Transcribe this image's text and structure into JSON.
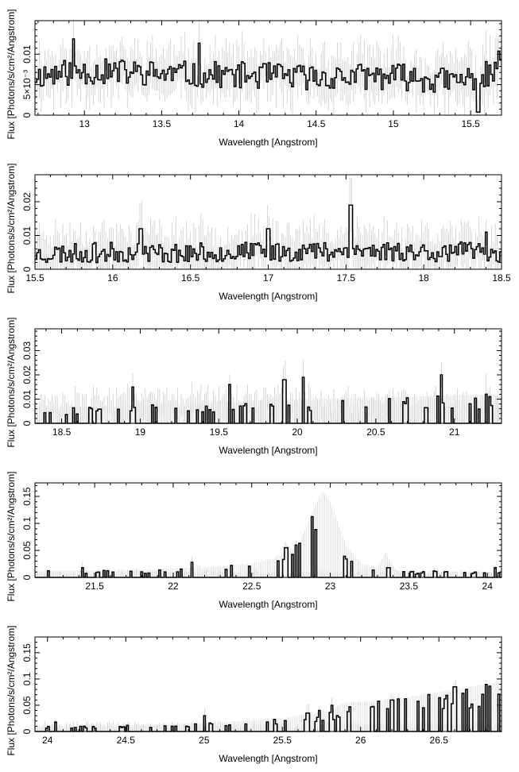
{
  "chart_data": [
    {
      "type": "line",
      "xlabel": "Wavelength [Angstrom]",
      "ylabel": "Flux [Photons/s/cm²/Angstrom]",
      "xlim": [
        12.68,
        15.7
      ],
      "ylim": [
        0,
        0.0155
      ],
      "xticks": [
        13,
        13.5,
        14,
        14.5,
        15,
        15.5
      ],
      "xtick_labels": [
        "13",
        "13.5",
        "14",
        "14.5",
        "15",
        "15.5"
      ],
      "yticks": [
        0,
        0.005,
        0.01
      ],
      "ytick_labels": [
        "0",
        "5×10⁻³",
        "0.01"
      ],
      "profile": [
        [
          12.68,
          0.0065
        ],
        [
          13.0,
          0.0072
        ],
        [
          13.5,
          0.0068
        ],
        [
          14.0,
          0.0066
        ],
        [
          14.5,
          0.0062
        ],
        [
          15.0,
          0.0064
        ],
        [
          15.4,
          0.0055
        ],
        [
          15.7,
          0.0072
        ]
      ],
      "features": [
        [
          12.93,
          0.0125
        ],
        [
          13.74,
          0.0118
        ],
        [
          15.55,
          0.0005
        ],
        [
          15.68,
          0.0105
        ]
      ],
      "noise": 0.0022,
      "errorbar": 0.0035,
      "floor": 0,
      "envelope": [],
      "seed": 11
    },
    {
      "type": "line",
      "xlabel": "Wavelength [Angstrom]",
      "ylabel": "Flux [Photons/s/cm²/Angstrom]",
      "xlim": [
        15.5,
        18.5
      ],
      "ylim": [
        0,
        0.028
      ],
      "xticks": [
        15.5,
        16,
        16.5,
        17,
        17.5,
        18,
        18.5
      ],
      "xtick_labels": [
        "15.5",
        "16",
        "16.5",
        "17",
        "17.5",
        "18",
        "18.5"
      ],
      "yticks": [
        0,
        0.01,
        0.02
      ],
      "ytick_labels": [
        "0",
        "0.01",
        "0.02"
      ],
      "profile": [
        [
          15.5,
          0.0045
        ],
        [
          16.0,
          0.005
        ],
        [
          16.5,
          0.0048
        ],
        [
          17.0,
          0.0052
        ],
        [
          17.5,
          0.0055
        ],
        [
          18.0,
          0.0052
        ],
        [
          18.5,
          0.005
        ]
      ],
      "features": [
        [
          16.18,
          0.012
        ],
        [
          17.0,
          0.012
        ],
        [
          17.53,
          0.019
        ],
        [
          18.4,
          0.011
        ]
      ],
      "noise": 0.003,
      "errorbar": 0.006,
      "floor": 0,
      "envelope": [],
      "seed": 23
    },
    {
      "type": "line",
      "xlabel": "Wavelength [Angstrom]",
      "ylabel": "Flux [Photons/s/cm²/Angstrom]",
      "xlim": [
        18.33,
        21.3
      ],
      "ylim": [
        0,
        0.039
      ],
      "xticks": [
        18.5,
        19,
        19.5,
        20,
        20.5,
        21
      ],
      "xtick_labels": [
        "18.5",
        "19",
        "19.5",
        "20",
        "20.5",
        "21"
      ],
      "yticks": [
        0,
        0.01,
        0.02,
        0.03
      ],
      "ytick_labels": [
        "0",
        "0.01",
        "0.02",
        "0.03"
      ],
      "profile": [
        [
          18.33,
          0.004
        ],
        [
          19.0,
          0.006
        ],
        [
          19.5,
          0.005
        ],
        [
          20.0,
          0.005
        ],
        [
          20.5,
          0.003
        ],
        [
          21.0,
          0.004
        ],
        [
          21.3,
          0.004
        ]
      ],
      "features": [
        [
          18.95,
          0.015
        ],
        [
          19.57,
          0.016
        ],
        [
          19.92,
          0.018
        ],
        [
          20.04,
          0.019
        ],
        [
          20.92,
          0.02
        ],
        [
          21.2,
          0.012
        ]
      ],
      "noise": 0.004,
      "errorbar": 0.006,
      "floor": 0,
      "envelope": [
        [
          18.33,
          0.006
        ],
        [
          19.2,
          0.008
        ],
        [
          20.0,
          0.01
        ],
        [
          20.7,
          0.011
        ],
        [
          21.3,
          0.012
        ]
      ],
      "seed": 37
    },
    {
      "type": "line",
      "xlabel": "Wavelength [Angstrom]",
      "ylabel": "Flux [Photons/s/cm²/Angstrom]",
      "xlim": [
        21.12,
        24.09
      ],
      "ylim": [
        0,
        0.175
      ],
      "xticks": [
        21.5,
        22,
        22.5,
        23,
        23.5,
        24
      ],
      "xtick_labels": [
        "21.5",
        "22",
        "22.5",
        "23",
        "23.5",
        "24"
      ],
      "yticks": [
        0,
        0.05,
        0.1,
        0.15
      ],
      "ytick_labels": [
        "0",
        "0.05",
        "0.1",
        "0.15"
      ],
      "profile": [
        [
          21.12,
          0.0
        ],
        [
          24.09,
          0.0
        ]
      ],
      "features": [
        [
          21.42,
          0.018
        ],
        [
          22.12,
          0.028
        ],
        [
          22.72,
          0.055
        ],
        [
          22.78,
          0.06
        ],
        [
          23.37,
          0.018
        ],
        [
          23.66,
          0.012
        ],
        [
          24.05,
          0.018
        ]
      ],
      "noise": 0.004,
      "errorbar": 0.008,
      "floor": 0,
      "envelope": [
        [
          21.12,
          0.012
        ],
        [
          21.8,
          0.014
        ],
        [
          22.3,
          0.02
        ],
        [
          22.6,
          0.03
        ],
        [
          22.8,
          0.06
        ],
        [
          22.9,
          0.13
        ],
        [
          22.95,
          0.16
        ],
        [
          23.0,
          0.14
        ],
        [
          23.1,
          0.06
        ],
        [
          23.2,
          0.025
        ],
        [
          23.3,
          0.02
        ],
        [
          23.35,
          0.045
        ],
        [
          23.42,
          0.012
        ],
        [
          24.09,
          0.01
        ]
      ],
      "seed": 51
    },
    {
      "type": "line",
      "xlabel": "Wavelength [Angstrom]",
      "ylabel": "Flux [Photons/s/cm²/Angstrom]",
      "xlim": [
        23.92,
        26.9
      ],
      "ylim": [
        0,
        0.18
      ],
      "xticks": [
        24,
        24.5,
        25,
        25.5,
        26,
        26.5
      ],
      "xtick_labels": [
        "24",
        "24.5",
        "25",
        "25.5",
        "26",
        "26.5"
      ],
      "yticks": [
        0,
        0.05,
        0.1,
        0.15
      ],
      "ytick_labels": [
        "0",
        "0.05",
        "0.1",
        "0.15"
      ],
      "profile": [
        [
          23.92,
          0.0
        ],
        [
          26.9,
          0.0
        ]
      ],
      "features": [
        [
          24.05,
          0.018
        ],
        [
          25.0,
          0.03
        ],
        [
          25.66,
          0.035
        ],
        [
          25.74,
          0.04
        ],
        [
          25.82,
          0.05
        ],
        [
          26.2,
          0.06
        ],
        [
          26.24,
          0.062
        ],
        [
          26.6,
          0.085
        ]
      ],
      "noise": 0.003,
      "errorbar": 0.012,
      "floor": 0,
      "envelope": [
        [
          23.92,
          0.01
        ],
        [
          24.5,
          0.012
        ],
        [
          25.0,
          0.016
        ],
        [
          25.5,
          0.025
        ],
        [
          25.8,
          0.04
        ],
        [
          25.9,
          0.055
        ],
        [
          26.2,
          0.06
        ],
        [
          26.5,
          0.075
        ],
        [
          26.9,
          0.095
        ]
      ],
      "seed": 67
    }
  ]
}
